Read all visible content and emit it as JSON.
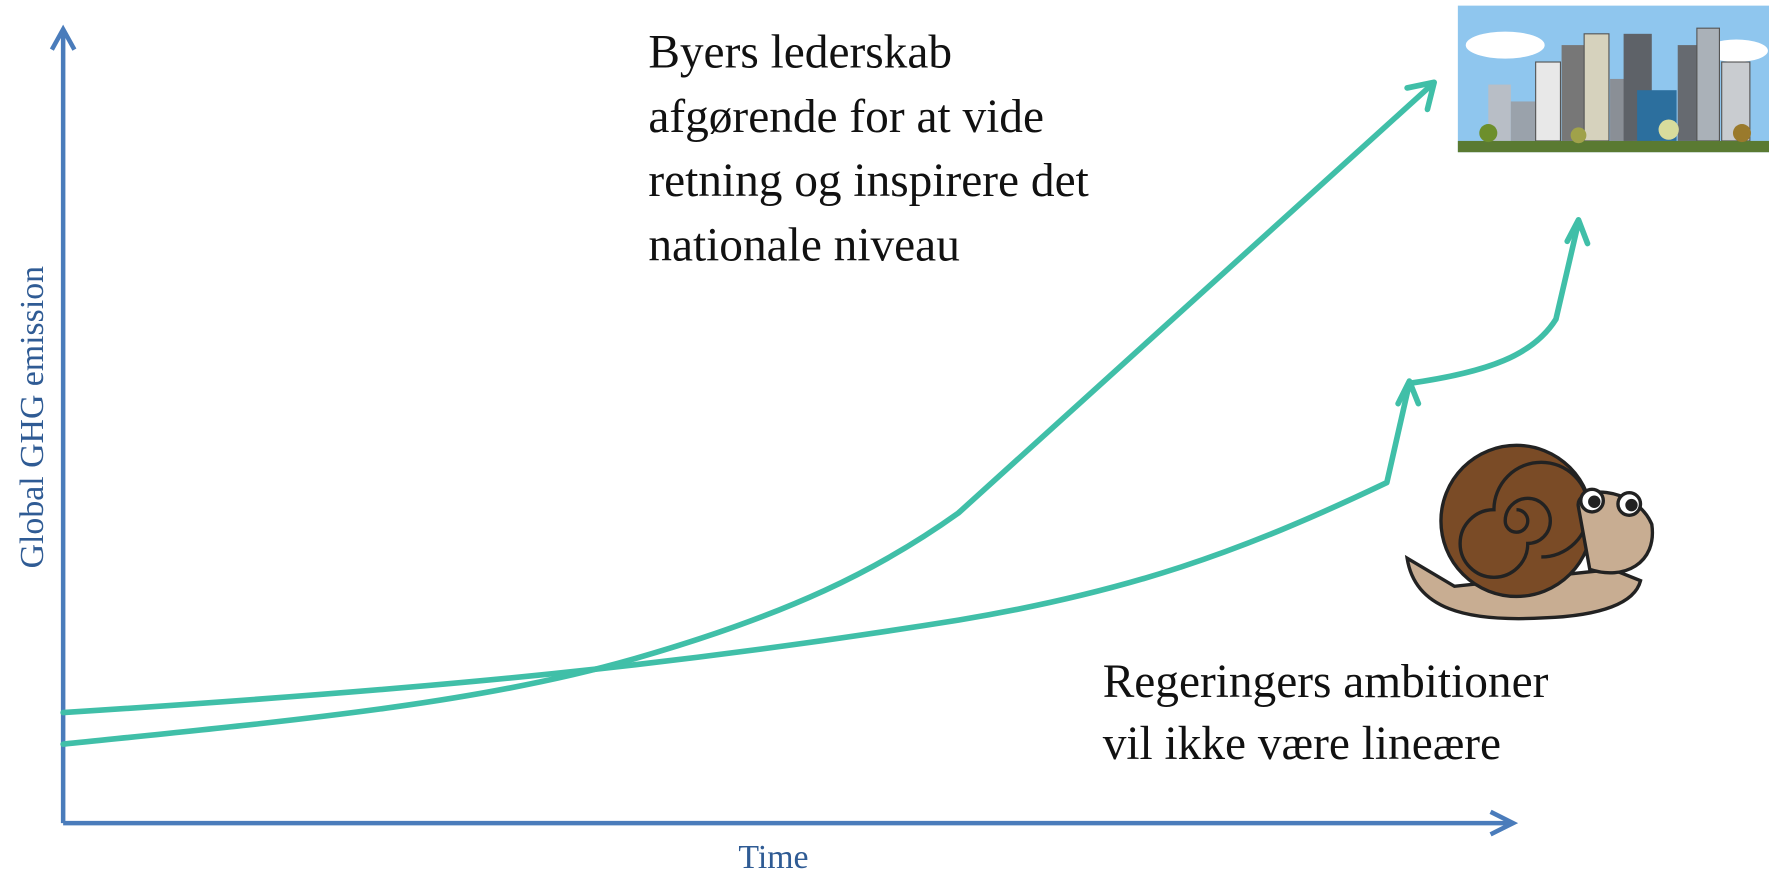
{
  "y_axis_label": "Global GHG emission",
  "x_axis_label": "Time",
  "cities_note": [
    "Byers lederskab",
    "afgørende for at vide",
    "retning og inspirere det",
    "nationale niveau"
  ],
  "governments_note": [
    "Regeringers ambitioner",
    "vil ikke være lineære"
  ]
}
